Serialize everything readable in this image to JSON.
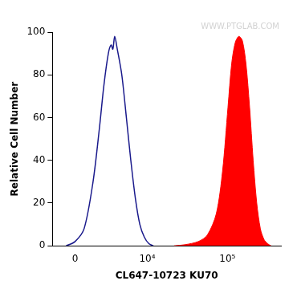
{
  "chart_data": {
    "type": "line",
    "x_label": "CL647-10723 KU70",
    "y_label": "Relative Cell Number",
    "annotations": [
      "WWW.PTGLAB.COM"
    ],
    "xlim": [
      -1800,
      460000
    ],
    "xticks": [
      0,
      {
        "value": 10000,
        "label": "10⁴"
      },
      {
        "value": 100000,
        "label": "10⁵"
      }
    ],
    "ylim": [
      0,
      100
    ],
    "yticks": [
      0,
      20,
      40,
      60,
      80,
      100
    ],
    "grid": false,
    "series": [
      {
        "type": "line",
        "color": "#1a1a8c",
        "x": [
          -670,
          0,
          675,
          1390,
          1950,
          2380,
          2850,
          3160,
          3370,
          3600,
          3940,
          4580,
          5310,
          6100,
          7030,
          8030,
          9190,
          10490,
          11960
        ],
        "values": [
          0,
          2,
          8,
          30,
          55,
          75,
          90,
          94,
          92,
          98,
          92,
          80,
          60,
          40,
          22,
          10,
          4,
          1,
          0
        ]
      },
      {
        "type": "area",
        "color": "#ff0000",
        "x": [
          21770,
          29620,
          43580,
          56300,
          72800,
          87100,
          101700,
          112700,
          124800,
          138300,
          153100,
          169800,
          188000,
          208400,
          230700,
          255800,
          283500,
          314100,
          348000
        ],
        "values": [
          0,
          0.5,
          2,
          5,
          15,
          35,
          65,
          85,
          95,
          98,
          96,
          85,
          65,
          40,
          20,
          8,
          3,
          1,
          0
        ]
      }
    ]
  }
}
